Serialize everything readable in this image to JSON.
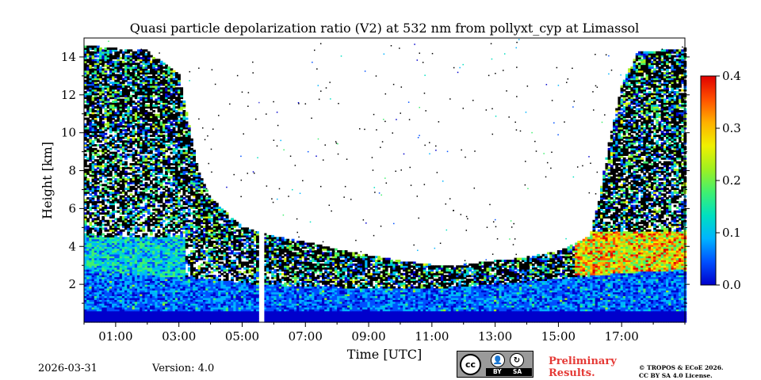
{
  "chart_data": {
    "type": "heatmap",
    "title": "Quasi particle depolarization ratio (V2) at 532 nm from pollyxt_cyp at Limassol",
    "xlabel": "Time [UTC]",
    "ylabel": "Height [km]",
    "x_range_hours": [
      0,
      19
    ],
    "x_tick_values": [
      1,
      3,
      5,
      7,
      9,
      11,
      13,
      15,
      17
    ],
    "x_tick_labels": [
      "01:00",
      "03:00",
      "05:00",
      "07:00",
      "09:00",
      "11:00",
      "13:00",
      "15:00",
      "17:00"
    ],
    "y_range_km": [
      0,
      15
    ],
    "y_tick_values": [
      2,
      4,
      6,
      8,
      10,
      12,
      14
    ],
    "y_tick_labels": [
      "2",
      "4",
      "6",
      "8",
      "10",
      "12",
      "14"
    ],
    "colorbar": {
      "range": [
        0.0,
        0.4
      ],
      "tick_values": [
        0.0,
        0.1,
        0.2,
        0.3,
        0.4
      ],
      "tick_labels": [
        "0.0",
        "0.1",
        "0.2",
        "0.3",
        "0.4"
      ],
      "colors": [
        "#0000cc",
        "#0050ff",
        "#00b4ff",
        "#00e0c0",
        "#40f070",
        "#a0f020",
        "#f0f000",
        "#ffb000",
        "#ff5000",
        "#e00000"
      ]
    },
    "data_gap_hours": [
      5.55,
      5.7
    ],
    "signal_top_km": [
      [
        0.0,
        14.6
      ],
      [
        1.0,
        14.4
      ],
      [
        2.0,
        14.3
      ],
      [
        3.0,
        13.0
      ],
      [
        3.3,
        10.5
      ],
      [
        3.6,
        8.0
      ],
      [
        4.0,
        6.5
      ],
      [
        5.0,
        5.0
      ],
      [
        6.0,
        4.5
      ],
      [
        7.0,
        4.2
      ],
      [
        8.0,
        3.8
      ],
      [
        9.0,
        3.5
      ],
      [
        10.0,
        3.2
      ],
      [
        11.0,
        3.0
      ],
      [
        12.0,
        3.0
      ],
      [
        13.0,
        3.2
      ],
      [
        14.0,
        3.4
      ],
      [
        15.0,
        3.7
      ],
      [
        16.0,
        4.5
      ],
      [
        16.3,
        6.5
      ],
      [
        16.6,
        9.5
      ],
      [
        17.0,
        12.5
      ],
      [
        17.5,
        14.2
      ],
      [
        19.0,
        14.4
      ]
    ],
    "boundary_layer_top_km": [
      [
        0.0,
        2.8
      ],
      [
        2.0,
        2.5
      ],
      [
        4.0,
        2.3
      ],
      [
        5.5,
        2.0
      ],
      [
        7.0,
        1.9
      ],
      [
        9.0,
        1.8
      ],
      [
        11.0,
        1.8
      ],
      [
        13.0,
        2.0
      ],
      [
        15.0,
        2.3
      ],
      [
        17.0,
        2.6
      ],
      [
        19.0,
        2.8
      ]
    ],
    "dust_layer": {
      "time_hours": [
        15.5,
        19.0
      ],
      "height_km": [
        2.5,
        4.8
      ],
      "value": 0.3
    }
  },
  "footer": {
    "date": "2026-03-31",
    "version": "Version: 4.0",
    "preliminary_line1": "Preliminary",
    "preliminary_line2": "Results.",
    "copyright_line1": "© TROPOS & ECoE 2026.",
    "copyright_line2": "CC BY SA 4.0 License.",
    "license_by": "BY",
    "license_sa": "SA",
    "license_cc": "cc"
  }
}
